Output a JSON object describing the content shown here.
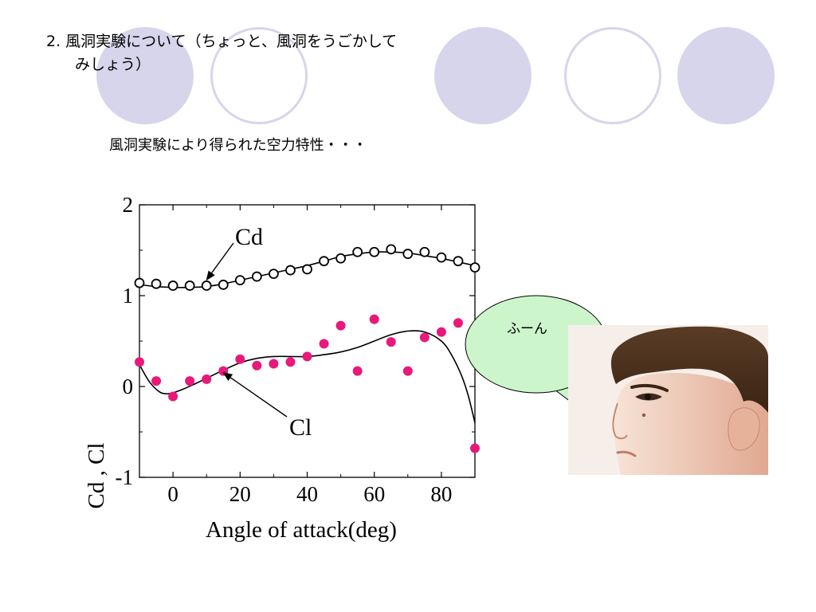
{
  "slide": {
    "title_line1": "2. 風洞実験について（ちょっと、風洞をうごかして",
    "title_line2": "みしょう）",
    "subtitle": "風洞実験により得られた空力特性・・・",
    "bubble_text": "ふーん"
  },
  "colors": {
    "decor": "#d6d5ec",
    "cl_points": "#e8197a",
    "bubble_fill": "#ccf5cc"
  },
  "chart_data": {
    "type": "scatter",
    "xlabel": "Angle of attack(deg)",
    "ylabel": "Cd , Cl",
    "xlim": [
      -10,
      90
    ],
    "ylim": [
      -1,
      2
    ],
    "x_ticks": [
      "0",
      "20",
      "40",
      "60",
      "80"
    ],
    "y_ticks": [
      "-1",
      "0",
      "1",
      "2"
    ],
    "series": [
      {
        "name": "Cd",
        "marker": "open-circle",
        "x": [
          -10,
          -5,
          0,
          5,
          10,
          15,
          20,
          25,
          30,
          35,
          40,
          45,
          50,
          55,
          60,
          65,
          70,
          75,
          80,
          85,
          90
        ],
        "y": [
          1.14,
          1.13,
          1.11,
          1.11,
          1.11,
          1.12,
          1.17,
          1.21,
          1.24,
          1.28,
          1.29,
          1.38,
          1.41,
          1.48,
          1.48,
          1.51,
          1.46,
          1.48,
          1.42,
          1.38,
          1.31
        ]
      },
      {
        "name": "Cl",
        "marker": "filled-circle",
        "x": [
          -10,
          -5,
          0,
          5,
          10,
          15,
          20,
          25,
          30,
          35,
          40,
          45,
          50,
          55,
          60,
          65,
          70,
          75,
          80,
          85,
          90
        ],
        "y": [
          0.27,
          0.06,
          -0.11,
          0.06,
          0.08,
          0.17,
          0.3,
          0.23,
          0.25,
          0.27,
          0.33,
          0.47,
          0.67,
          0.17,
          0.74,
          0.49,
          0.17,
          0.54,
          0.6,
          0.7,
          -0.68
        ]
      }
    ],
    "fits": [
      {
        "of": "Cd",
        "x": [
          -10,
          -5,
          0,
          5,
          10,
          15,
          20,
          25,
          30,
          35,
          40,
          45,
          50,
          55,
          60,
          65,
          70,
          75,
          80,
          85,
          90
        ],
        "y": [
          1.12,
          1.1,
          1.09,
          1.09,
          1.1,
          1.13,
          1.17,
          1.21,
          1.25,
          1.29,
          1.33,
          1.38,
          1.43,
          1.46,
          1.48,
          1.48,
          1.47,
          1.44,
          1.41,
          1.37,
          1.33
        ]
      },
      {
        "of": "Cl",
        "x": [
          -10,
          -7,
          -4,
          -2,
          0,
          3,
          6,
          10,
          15,
          20,
          25,
          30,
          35,
          40,
          45,
          50,
          55,
          60,
          65,
          70,
          75,
          80,
          83,
          86,
          88,
          90
        ],
        "y": [
          0.24,
          0.05,
          -0.06,
          -0.08,
          -0.07,
          -0.03,
          0.02,
          0.09,
          0.18,
          0.26,
          0.31,
          0.33,
          0.33,
          0.33,
          0.35,
          0.38,
          0.43,
          0.5,
          0.57,
          0.61,
          0.6,
          0.5,
          0.35,
          0.12,
          -0.1,
          -0.4
        ]
      }
    ],
    "annotations": [
      {
        "text": "Cd",
        "points_to": [
          10,
          1.12
        ]
      },
      {
        "text": "Cl",
        "points_to": [
          15,
          0.1
        ]
      }
    ]
  }
}
